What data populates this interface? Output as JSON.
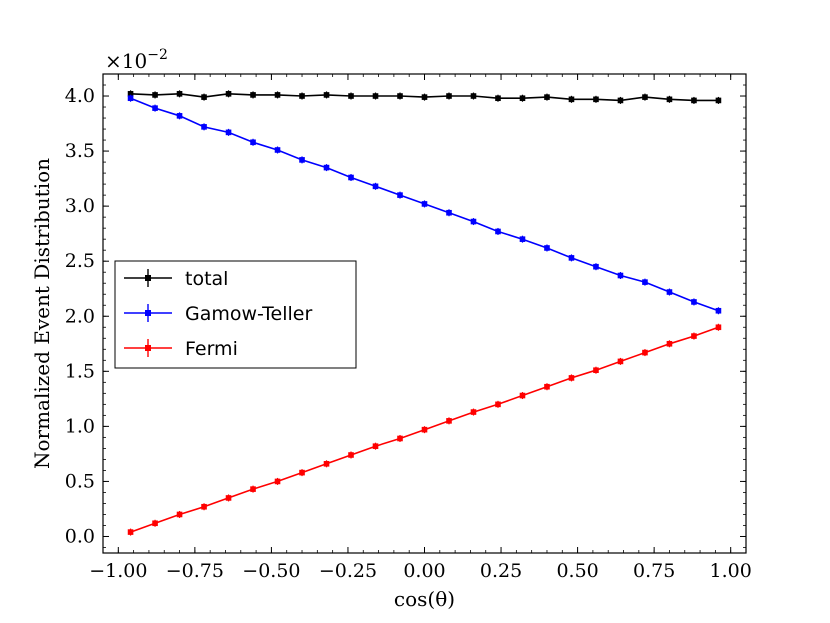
{
  "chart_data": {
    "type": "line",
    "xlabel": "cos(θ)",
    "ylabel": "Normalized Event Distribution",
    "y_multiplier_text": "×10",
    "y_multiplier_exp": "−2",
    "xlim": [
      -1.05,
      1.05
    ],
    "ylim": [
      -0.15,
      4.2
    ],
    "xticks": [
      -1.0,
      -0.75,
      -0.5,
      -0.25,
      0.0,
      0.25,
      0.5,
      0.75,
      1.0
    ],
    "xtick_labels": [
      "−1.00",
      "−0.75",
      "−0.50",
      "−0.25",
      "0.00",
      "0.25",
      "0.50",
      "0.75",
      "1.00"
    ],
    "yticks": [
      0.0,
      0.5,
      1.0,
      1.5,
      2.0,
      2.5,
      3.0,
      3.5,
      4.0
    ],
    "ytick_labels": [
      "0.0",
      "0.5",
      "1.0",
      "1.5",
      "2.0",
      "2.5",
      "3.0",
      "3.5",
      "4.0"
    ],
    "grid": false,
    "legend_placement": "center-left",
    "x": [
      -0.96,
      -0.88,
      -0.8,
      -0.72,
      -0.64,
      -0.56,
      -0.48,
      -0.4,
      -0.32,
      -0.24,
      -0.16,
      -0.08,
      0.0,
      0.08,
      0.16,
      0.24,
      0.32,
      0.4,
      0.48,
      0.56,
      0.64,
      0.72,
      0.8,
      0.88,
      0.96
    ],
    "series": [
      {
        "name": "total",
        "color": "#000000",
        "values": [
          4.02,
          4.01,
          4.02,
          3.99,
          4.02,
          4.01,
          4.01,
          4.0,
          4.01,
          4.0,
          4.0,
          4.0,
          3.99,
          4.0,
          4.0,
          3.98,
          3.98,
          3.99,
          3.97,
          3.97,
          3.96,
          3.99,
          3.97,
          3.96,
          3.96
        ]
      },
      {
        "name": "Gamow-Teller",
        "color": "#0000ff",
        "values": [
          3.98,
          3.89,
          3.82,
          3.72,
          3.67,
          3.58,
          3.51,
          3.42,
          3.35,
          3.26,
          3.18,
          3.1,
          3.02,
          2.94,
          2.86,
          2.77,
          2.7,
          2.62,
          2.53,
          2.45,
          2.37,
          2.31,
          2.22,
          2.13,
          2.05
        ]
      },
      {
        "name": "Fermi",
        "color": "#ff0000",
        "values": [
          0.04,
          0.12,
          0.2,
          0.27,
          0.35,
          0.43,
          0.5,
          0.58,
          0.66,
          0.74,
          0.82,
          0.89,
          0.97,
          1.05,
          1.13,
          1.2,
          1.28,
          1.36,
          1.44,
          1.51,
          1.59,
          1.67,
          1.75,
          1.82,
          1.9
        ]
      }
    ]
  }
}
